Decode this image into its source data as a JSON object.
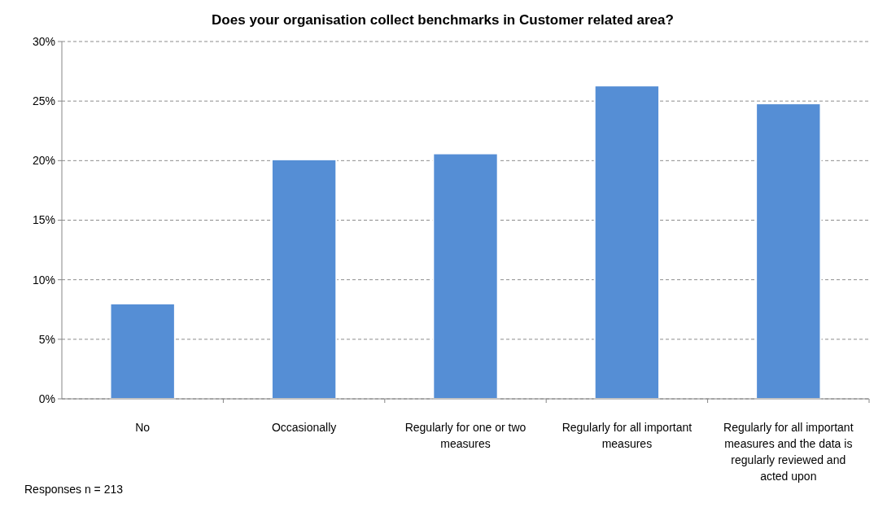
{
  "chart_data": {
    "type": "bar",
    "title": "Does your organisation collect benchmarks in Customer related area?",
    "categories": [
      "No",
      "Occasionally",
      "Regularly for one or two measures",
      "Regularly for all important measures",
      "Regularly for all important measures and the data is regularly reviewed and acted upon"
    ],
    "values": [
      8.0,
      20.1,
      20.6,
      26.3,
      24.8
    ],
    "color": "#558ed5",
    "ylim": [
      0,
      30
    ],
    "yticks": [
      {
        "value": 0,
        "label": "0%"
      },
      {
        "value": 5,
        "label": "5%"
      },
      {
        "value": 10,
        "label": "10%"
      },
      {
        "value": 15,
        "label": "15%"
      },
      {
        "value": 20,
        "label": "20%"
      },
      {
        "value": 25,
        "label": "25%"
      },
      {
        "value": 30,
        "label": "30%"
      }
    ],
    "grid": "y",
    "annotations": [
      "Responses n = 213"
    ]
  }
}
